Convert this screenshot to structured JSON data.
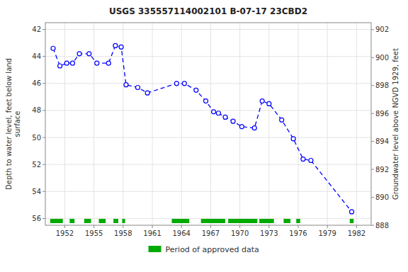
{
  "chart_data": {
    "type": "line",
    "title": "USGS 335557114002101 B-07-17 23CBD2",
    "ylabel": "Depth to water level, feet below land\nsurface",
    "y2label": "Groundwater level above NGVD 1929, feet",
    "x": [
      1950.8,
      1951.5,
      1952.2,
      1952.8,
      1953.5,
      1954.5,
      1955.3,
      1956.5,
      1957.2,
      1957.8,
      1958.3,
      1959.5,
      1960.5,
      1963.5,
      1964.3,
      1965.5,
      1966.5,
      1967.3,
      1967.8,
      1968.5,
      1969.3,
      1970.2,
      1971.5,
      1972.3,
      1973.0,
      1974.3,
      1975.5,
      1976.5,
      1977.3,
      1981.5
    ],
    "series": [
      {
        "type": "line",
        "color": "blue",
        "marker": "circle",
        "line_style": "dashed",
        "values": [
          43.4,
          44.7,
          44.5,
          44.5,
          43.8,
          43.8,
          44.5,
          44.5,
          43.2,
          43.3,
          46.1,
          46.3,
          46.7,
          46.0,
          46.0,
          46.5,
          47.3,
          48.1,
          48.2,
          48.5,
          48.8,
          49.2,
          49.3,
          47.3,
          47.5,
          48.7,
          50.1,
          51.6,
          51.7,
          55.5
        ]
      },
      {
        "type": "span",
        "name": "Period of approved data",
        "color": "#00aa00",
        "values": [
          [
            1950.5,
            1951.8
          ],
          [
            1952.5,
            1953.0
          ],
          [
            1954.0,
            1954.7
          ],
          [
            1955.5,
            1956.2
          ],
          [
            1957.0,
            1957.5
          ],
          [
            1957.9,
            1958.2
          ],
          [
            1963.0,
            1964.8
          ],
          [
            1966.0,
            1968.5
          ],
          [
            1968.8,
            1971.8
          ],
          [
            1972.0,
            1973.5
          ],
          [
            1974.5,
            1975.2
          ],
          [
            1975.8,
            1976.2
          ],
          [
            1981.3,
            1981.7
          ]
        ]
      }
    ],
    "xlim": [
      1950.0,
      1983.5
    ],
    "xticks": [
      1952,
      1955,
      1958,
      1961,
      1964,
      1967,
      1970,
      1973,
      1976,
      1979,
      1982
    ],
    "ylim": [
      56.5,
      41.5
    ],
    "yticks": [
      42,
      44,
      46,
      48,
      50,
      52,
      54,
      56
    ],
    "y2lim": [
      888,
      902.5
    ],
    "y2ticks": [
      888,
      890,
      892,
      894,
      896,
      898,
      900,
      902
    ],
    "grid": true,
    "legend": "bottom"
  }
}
